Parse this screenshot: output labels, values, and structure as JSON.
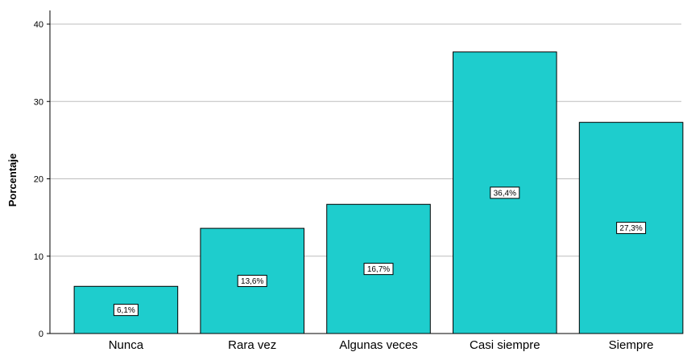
{
  "chart_data": {
    "type": "bar",
    "categories": [
      "Nunca",
      "Rara vez",
      "Algunas veces",
      "Casi siempre",
      "Siempre"
    ],
    "values": [
      6.1,
      13.6,
      16.7,
      36.4,
      27.3
    ],
    "data_labels": [
      "6,1%",
      "13,6%",
      "16,7%",
      "36,4%",
      "27,3%"
    ],
    "title": "",
    "xlabel": "",
    "ylabel": "Porcentaje",
    "ylim": [
      0,
      40
    ],
    "yticks": [
      0,
      10,
      20,
      30,
      40
    ],
    "grid": true,
    "legend": "none",
    "colors": {
      "bar_fill": "#1ecdcd",
      "bar_stroke": "#000000",
      "grid": "#bdbdbd",
      "axis": "#000000",
      "label_box_fill": "#ffffff",
      "label_box_stroke": "#000000"
    }
  }
}
